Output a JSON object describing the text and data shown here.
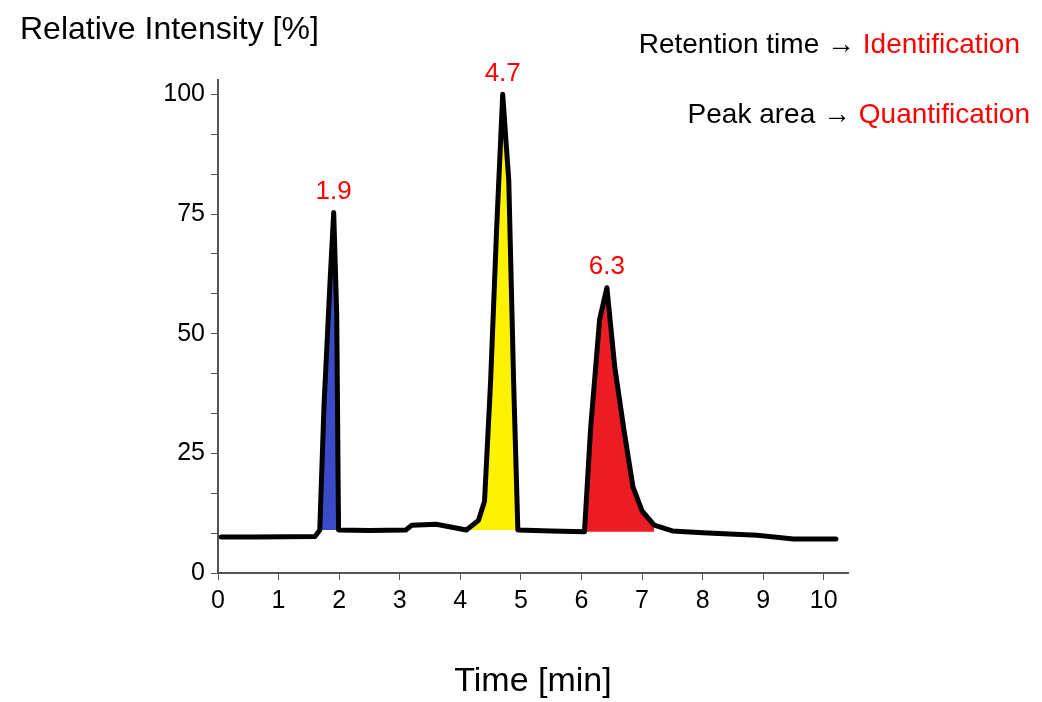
{
  "chart_data": {
    "type": "line",
    "xlabel": "Time [min]",
    "ylabel": "Relative Intensity [%]",
    "xlim": [
      0,
      10.4
    ],
    "ylim": [
      0,
      103
    ],
    "xticks": [
      0,
      1,
      2,
      3,
      4,
      5,
      6,
      7,
      8,
      9,
      10
    ],
    "yticks": [
      0,
      {
        "value": 8.33,
        "label": null
      },
      {
        "value": 16.67,
        "label": null
      },
      25,
      {
        "value": 33.33,
        "label": null
      },
      {
        "value": 41.67,
        "label": null
      },
      50,
      {
        "value": 58.33,
        "label": null
      },
      {
        "value": 66.67,
        "label": null
      },
      75,
      {
        "value": 83.33,
        "label": null
      },
      {
        "value": 91.67,
        "label": null
      },
      100
    ],
    "legend": false,
    "marker": "none",
    "series": [
      {
        "type": "area",
        "color": "#3b4bc8",
        "x": [
          1.68,
          1.75,
          1.85,
          1.91,
          1.96,
          1.99
        ],
        "values": [
          9,
          35,
          61,
          75.3,
          54,
          9
        ]
      },
      {
        "type": "area",
        "color": "#fff200",
        "x": [
          4.1,
          4.3,
          4.4,
          4.5,
          4.6,
          4.7,
          4.8,
          4.88,
          4.95
        ],
        "values": [
          9,
          11,
          15,
          40,
          72,
          100,
          82,
          40,
          9
        ]
      },
      {
        "type": "area",
        "color": "#ec1c24",
        "x": [
          6.05,
          6.15,
          6.3,
          6.42,
          6.55,
          6.7,
          6.85,
          7.0,
          7.2
        ],
        "values": [
          8.6,
          30,
          53,
          59.6,
          43,
          30,
          18,
          13,
          10
        ]
      },
      {
        "type": "line",
        "color": "#000000",
        "x": [
          0.05,
          1.6,
          1.68,
          1.75,
          1.85,
          1.91,
          1.96,
          1.99,
          2.5,
          3.1,
          3.2,
          3.6,
          4.1,
          4.3,
          4.4,
          4.5,
          4.6,
          4.7,
          4.8,
          4.88,
          4.95,
          5.5,
          6.05,
          6.15,
          6.3,
          6.42,
          6.55,
          6.7,
          6.85,
          7.0,
          7.2,
          7.5,
          8,
          8.9,
          9.5,
          10.2
        ],
        "values": [
          7.5,
          7.6,
          9,
          35,
          61,
          75.3,
          54,
          9,
          8.9,
          9,
          10,
          10.2,
          9,
          11,
          15,
          40,
          72,
          100,
          82,
          40,
          9,
          8.8,
          8.6,
          30,
          53,
          59.6,
          43,
          30,
          18,
          13,
          10,
          8.8,
          8.4,
          7.9,
          7.1,
          7.1
        ]
      }
    ],
    "annotations": [
      {
        "text": "1.9",
        "x": 1.91,
        "y": 75.3
      },
      {
        "text": "4.7",
        "x": 4.7,
        "y": 100
      },
      {
        "text": "6.3",
        "x": 6.42,
        "y": 59.6
      },
      "Retention time → Identification",
      "Peak area → Quantification"
    ]
  }
}
